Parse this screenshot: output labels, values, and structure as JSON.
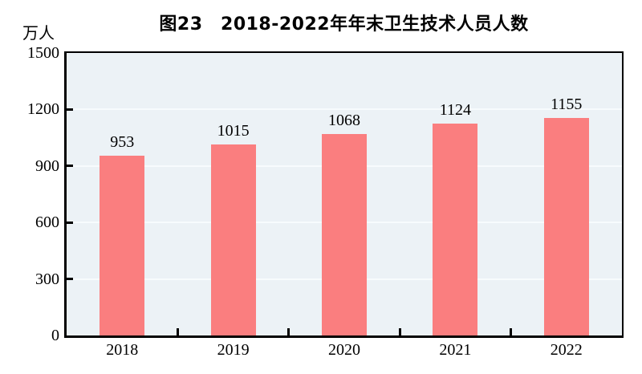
{
  "chart_data": {
    "type": "bar",
    "title": "图23　2018-2022年年末卫生技术人员人数",
    "ylabel": "万人",
    "xlabel": "",
    "categories": [
      "2018",
      "2019",
      "2020",
      "2021",
      "2022"
    ],
    "values": [
      953,
      1015,
      1068,
      1124,
      1155
    ],
    "ylim": [
      0,
      1500
    ],
    "yticks": [
      0,
      300,
      600,
      900,
      1200,
      1500
    ],
    "grid": true,
    "legend_position": "none",
    "bar_value_labels": [
      "953",
      "1015",
      "1068",
      "1124",
      "1155"
    ],
    "colors": {
      "bar": "#FA7E7F",
      "plot_background": "#ECF2F6",
      "gridline": "#F7FBFD",
      "axis": "#000000",
      "text": "#000000"
    }
  }
}
